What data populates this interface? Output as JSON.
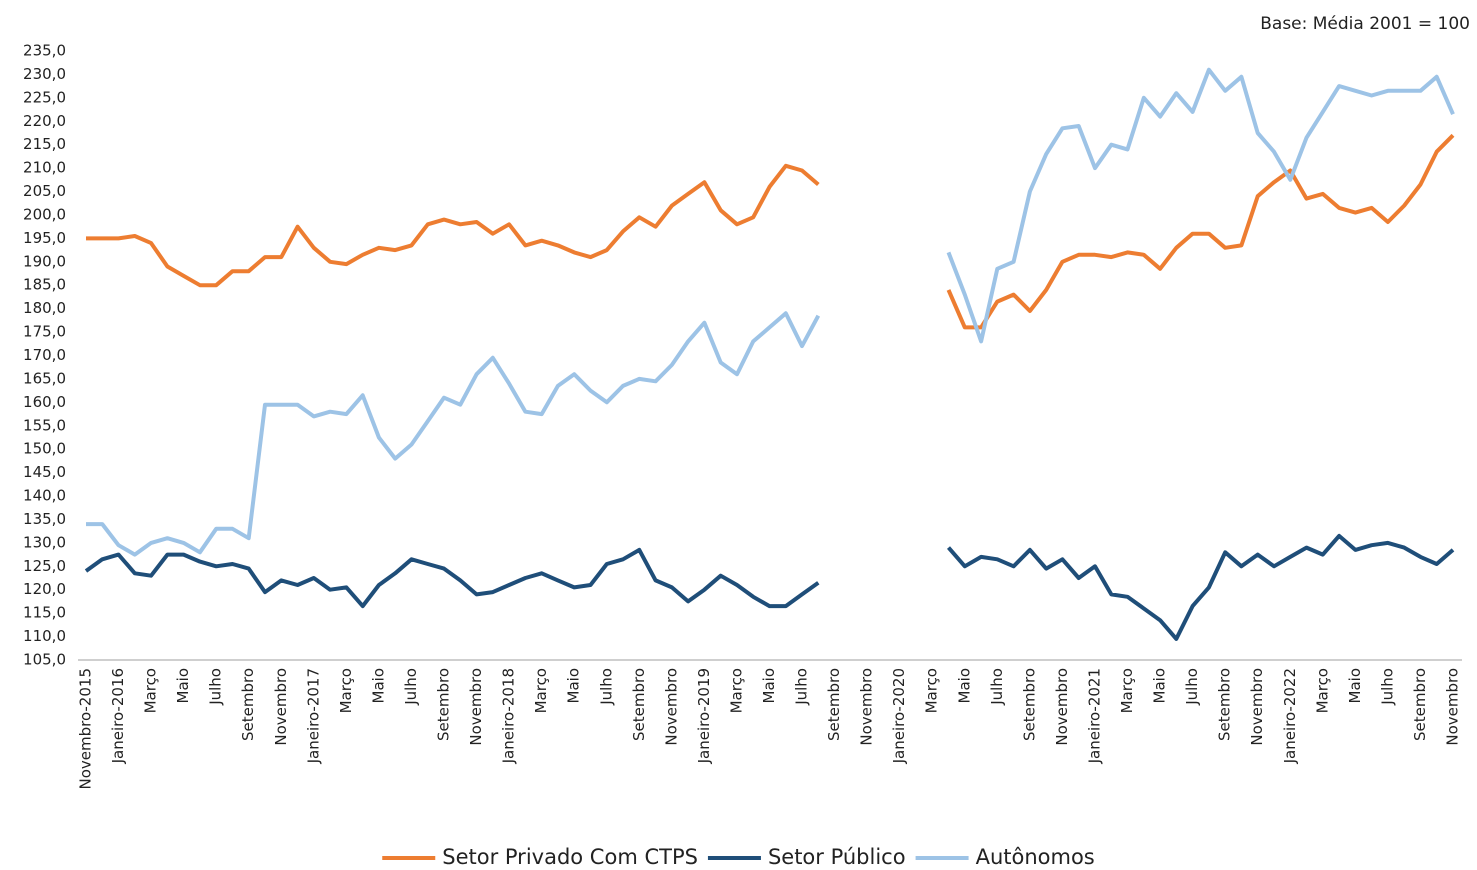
{
  "chart_data": {
    "type": "line",
    "note": "Base: Média 2001 = 100",
    "categories": [
      "Novembro-2015",
      null,
      "Janeiro-2016",
      null,
      "Março",
      null,
      "Maio",
      null,
      "Julho",
      null,
      "Setembro",
      null,
      "Novembro",
      null,
      "Janeiro-2017",
      null,
      "Março",
      null,
      "Maio",
      null,
      "Julho",
      null,
      "Setembro",
      null,
      "Novembro",
      null,
      "Janeiro-2018",
      null,
      "Março",
      null,
      "Maio",
      null,
      "Julho",
      null,
      "Setembro",
      null,
      "Novembro",
      null,
      "Janeiro-2019",
      null,
      "Março",
      null,
      "Maio",
      null,
      "Julho",
      null,
      "Setembro",
      null,
      "Novembro",
      null,
      "Janeiro-2020",
      null,
      "Março",
      null,
      "Maio",
      null,
      "Julho",
      null,
      "Setembro",
      null,
      "Novembro",
      null,
      "Janeiro-2021",
      null,
      "Março",
      null,
      "Maio",
      null,
      "Julho",
      null,
      "Setembro",
      null,
      "Novembro",
      null,
      "Janeiro-2022",
      null,
      "Março",
      null,
      "Maio",
      null,
      "Julho",
      null,
      "Setembro",
      null,
      "Novembro"
    ],
    "series": [
      {
        "name": "Setor Privado Com CTPS",
        "color": "#ed7d31",
        "values": [
          195,
          195,
          195,
          195.5,
          194,
          189,
          187,
          185,
          185,
          188,
          188,
          191,
          191,
          197.5,
          193,
          190,
          189.5,
          191.5,
          193,
          192.5,
          193.5,
          198,
          199,
          198,
          198.5,
          196,
          198,
          193.5,
          194.5,
          193.5,
          192,
          191,
          192.5,
          196.5,
          199.5,
          197.5,
          202,
          204.5,
          207,
          201,
          198,
          199.5,
          206,
          210.5,
          209.5,
          206.5,
          null,
          null,
          null,
          null,
          null,
          null,
          null,
          184,
          176,
          176,
          181.5,
          183,
          179.5,
          184,
          190,
          191.5,
          191.5,
          191,
          192,
          191.5,
          188.5,
          193,
          196,
          196,
          193,
          193.5,
          204,
          207,
          209.5,
          203.5,
          204.5,
          201.5,
          200.5,
          201.5,
          198.5,
          202,
          206.5,
          213.5,
          217
        ]
      },
      {
        "name": "Setor Público",
        "color": "#1f4e79",
        "values": [
          124,
          126.5,
          127.5,
          123.5,
          123,
          127.5,
          127.5,
          126,
          125,
          125.5,
          124.5,
          119.5,
          122,
          121,
          122.5,
          120,
          120.5,
          116.5,
          121,
          123.5,
          126.5,
          125.5,
          124.5,
          122,
          119,
          119.5,
          121,
          122.5,
          123.5,
          122,
          120.5,
          121,
          125.5,
          126.5,
          128.5,
          122,
          120.5,
          117.5,
          120,
          123,
          121,
          118.5,
          116.5,
          116.5,
          119,
          121.5,
          null,
          null,
          null,
          null,
          null,
          null,
          null,
          129,
          125,
          127,
          126.5,
          125,
          128.5,
          124.5,
          126.5,
          122.5,
          125,
          119,
          118.5,
          116,
          113.5,
          109.5,
          116.5,
          120.5,
          128,
          125,
          127.5,
          125,
          127,
          129,
          127.5,
          131.5,
          128.5,
          129.5,
          130,
          129,
          127,
          125.5,
          128.5
        ]
      },
      {
        "name": "Autônomos",
        "color": "#9dc3e6",
        "values": [
          134,
          134,
          129.5,
          127.5,
          130,
          131,
          130,
          128,
          133,
          133,
          131,
          159.5,
          159.5,
          159.5,
          157,
          158,
          157.5,
          161.5,
          152.5,
          148,
          151,
          156,
          161,
          159.5,
          166,
          169.5,
          164,
          158,
          157.5,
          163.5,
          166,
          162.5,
          160,
          163.5,
          165,
          164.5,
          168,
          173,
          177,
          168.5,
          166,
          173,
          176,
          179,
          172,
          178.5,
          null,
          null,
          null,
          null,
          null,
          null,
          null,
          192,
          183,
          173,
          188.5,
          190,
          205,
          213,
          218.5,
          219,
          210,
          215,
          214,
          225,
          221,
          226,
          222,
          231,
          226.5,
          229.5,
          217.5,
          213.5,
          207.5,
          216.5,
          222,
          227.5,
          226.5,
          225.5,
          226.5,
          226.5,
          226.5,
          229.5,
          221.5
        ]
      }
    ],
    "ylim": [
      105,
      235
    ],
    "yticks": [
      {
        "value": 105,
        "label": "105,0"
      },
      {
        "value": 110,
        "label": "110,0"
      },
      {
        "value": 115,
        "label": "115,0"
      },
      {
        "value": 120,
        "label": "120,0"
      },
      {
        "value": 125,
        "label": "125,0"
      },
      {
        "value": 130,
        "label": "130,0"
      },
      {
        "value": 135,
        "label": "135,0"
      },
      {
        "value": 140,
        "label": "140,0"
      },
      {
        "value": 145,
        "label": "145,0"
      },
      {
        "value": 150,
        "label": "150,0"
      },
      {
        "value": 155,
        "label": "155,0"
      },
      {
        "value": 160,
        "label": "160,0"
      },
      {
        "value": 165,
        "label": "165,0"
      },
      {
        "value": 170,
        "label": "170,0"
      },
      {
        "value": 175,
        "label": "175,0"
      },
      {
        "value": 180,
        "label": "180,0"
      },
      {
        "value": 185,
        "label": "185,0"
      },
      {
        "value": 190,
        "label": "190,0"
      },
      {
        "value": 195,
        "label": "195,0"
      },
      {
        "value": 200,
        "label": "200,0"
      },
      {
        "value": 205,
        "label": "205,0"
      },
      {
        "value": 210,
        "label": "210,0"
      },
      {
        "value": 215,
        "label": "215,0"
      },
      {
        "value": 220,
        "label": "220,0"
      },
      {
        "value": 225,
        "label": "225,0"
      },
      {
        "value": 230,
        "label": "230,0"
      },
      {
        "value": 235,
        "label": "235,0"
      }
    ],
    "grid": false,
    "legend": "bottom"
  }
}
